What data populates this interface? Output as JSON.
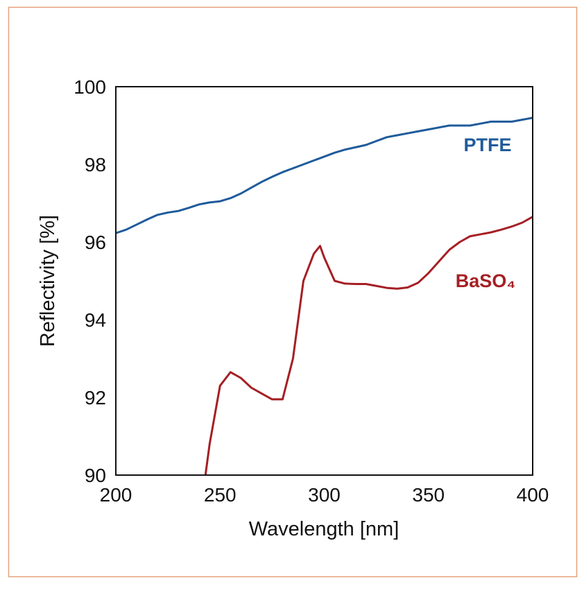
{
  "chart_data": {
    "type": "line",
    "x_label": "Wavelength [nm]",
    "y_label": "Reflectivity [%]",
    "x": [
      200,
      205,
      210,
      215,
      220,
      225,
      230,
      235,
      240,
      243,
      245,
      250,
      255,
      260,
      265,
      270,
      275,
      280,
      285,
      290,
      295,
      298,
      300,
      305,
      310,
      315,
      320,
      325,
      330,
      335,
      340,
      345,
      350,
      355,
      360,
      365,
      370,
      375,
      380,
      385,
      390,
      395,
      400
    ],
    "series": [
      {
        "name": "PTFE",
        "color": "#1f5b9b",
        "values": [
          96.23,
          96.32,
          96.45,
          96.58,
          96.7,
          96.76,
          96.8,
          96.88,
          96.97,
          97.0,
          97.02,
          97.05,
          97.13,
          97.25,
          97.4,
          97.55,
          97.68,
          97.8,
          97.9,
          98.0,
          98.1,
          98.16,
          98.2,
          98.3,
          98.38,
          98.44,
          98.5,
          98.6,
          98.7,
          98.75,
          98.8,
          98.85,
          98.9,
          98.95,
          99.0,
          99.0,
          99.0,
          99.05,
          99.1,
          99.1,
          99.1,
          99.15,
          99.2
        ]
      },
      {
        "name": "BaSO₄",
        "color": "#a51f24",
        "values": [
          null,
          null,
          null,
          null,
          null,
          null,
          null,
          null,
          null,
          90.0,
          90.8,
          92.3,
          92.65,
          92.5,
          92.25,
          92.1,
          91.95,
          91.95,
          93.0,
          95.0,
          95.7,
          95.9,
          95.6,
          95.0,
          94.93,
          94.92,
          94.92,
          94.87,
          94.82,
          94.8,
          94.83,
          94.95,
          95.2,
          95.5,
          95.8,
          96.0,
          96.15,
          96.2,
          96.25,
          96.32,
          96.4,
          96.5,
          96.65
        ]
      }
    ],
    "xlim": [
      200,
      400
    ],
    "ylim": [
      90,
      100
    ],
    "xticks": [
      200,
      250,
      300,
      350,
      400
    ],
    "yticks": [
      90,
      92,
      94,
      96,
      98,
      100
    ],
    "grid": false
  }
}
